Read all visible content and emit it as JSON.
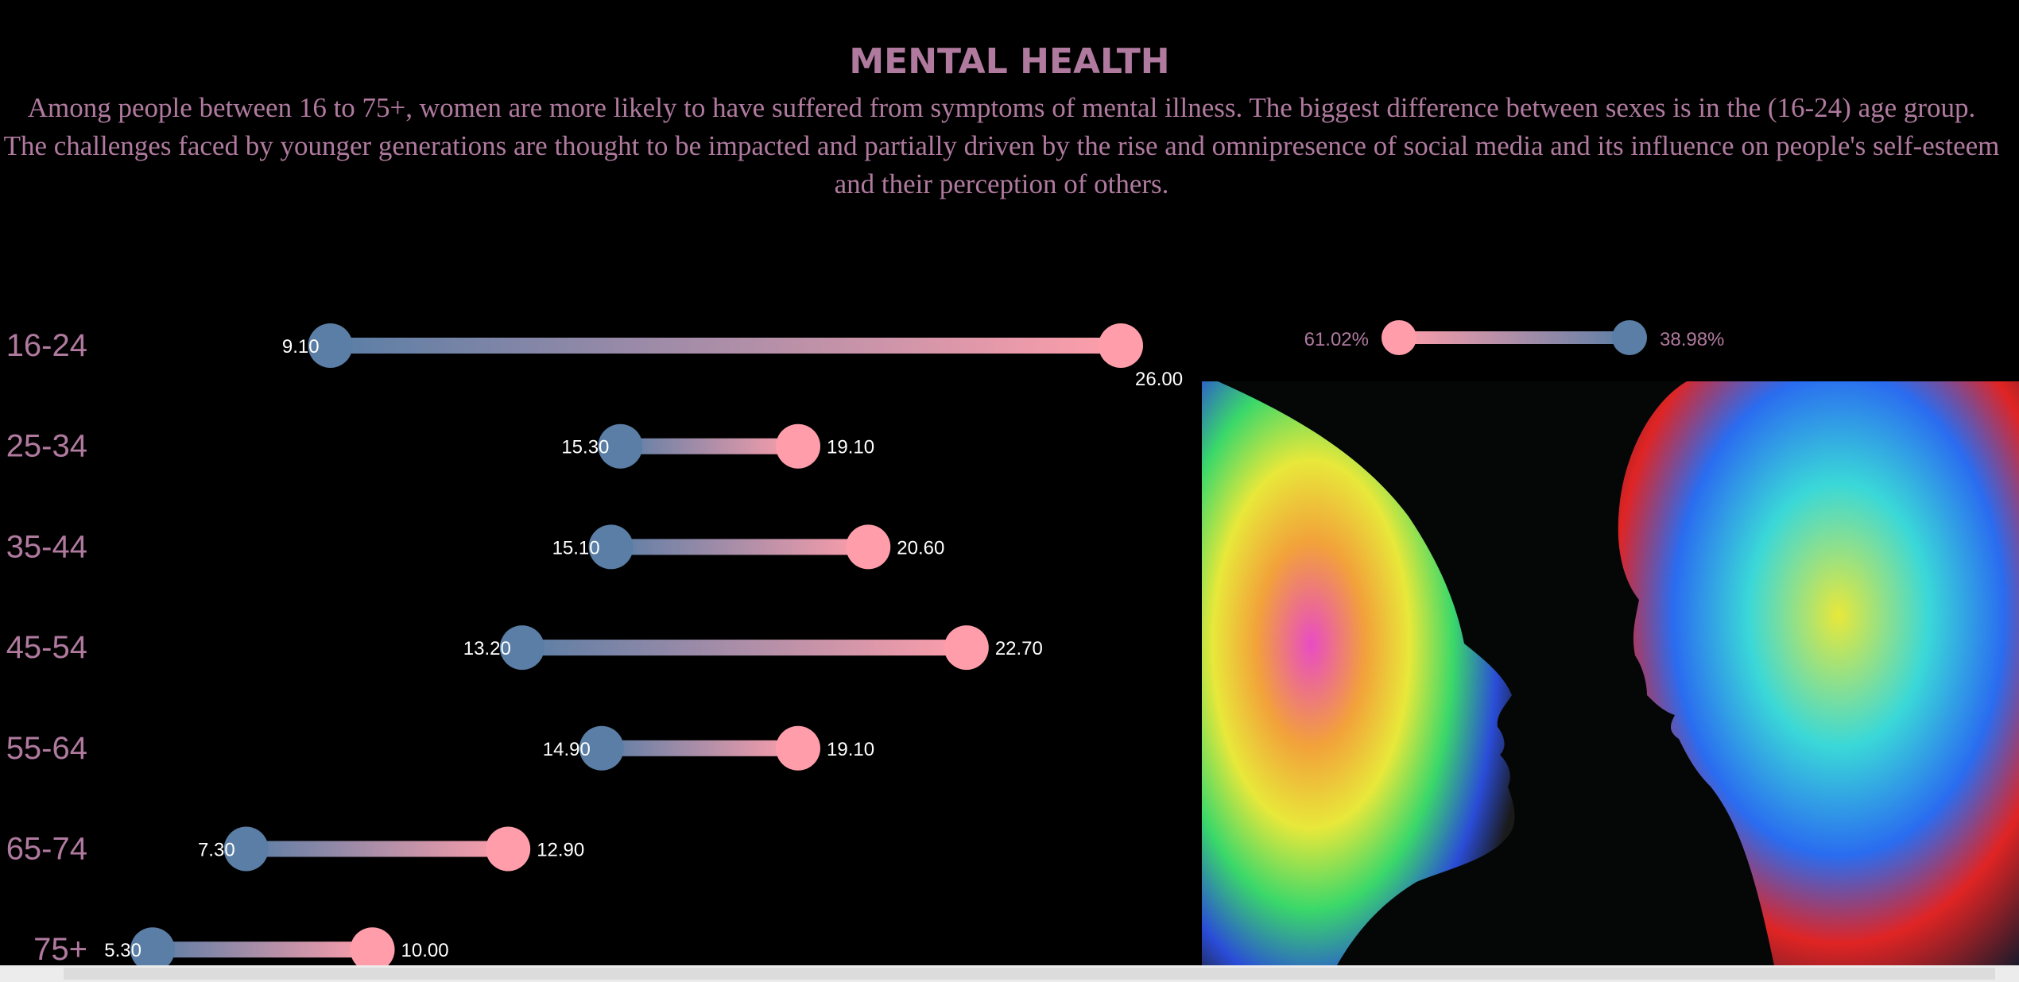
{
  "title": "MENTAL HEALTH",
  "subtitle": [
    "Among people between 16 to 75+, women are more likely to have suffered from symptoms of  mental illness. The biggest difference between sexes is in the (16-24) age group.",
    "The challenges faced by younger generations are thought to be impacted and partially driven by the rise and omnipresence of social media and its influence on people's self-esteem and their perception of others."
  ],
  "colors": {
    "background": "#000000",
    "text": "#b07a9f",
    "male": "#5a7ea6",
    "female": "#ff9eaa",
    "value_label": "#ffffff"
  },
  "legend": {
    "left_value": "61.02%",
    "right_value": "38.98%"
  },
  "chart_data": {
    "type": "dumbbell",
    "categories": [
      "16-24",
      "25-34",
      "35-44",
      "45-54",
      "55-64",
      "65-74",
      "75+"
    ],
    "series": [
      {
        "values": [
          9.1,
          15.3,
          15.1,
          13.2,
          14.9,
          7.3,
          5.3
        ],
        "labels": [
          "9.10",
          "15.30",
          "15.10",
          "13.20",
          "14.90",
          "7.30",
          "5.30"
        ]
      },
      {
        "values": [
          26.0,
          19.1,
          20.6,
          22.7,
          19.1,
          12.9,
          10.0
        ],
        "labels": [
          "26.00",
          "19.10",
          "20.60",
          "22.70",
          "19.10",
          "12.90",
          "10.00"
        ]
      }
    ]
  }
}
